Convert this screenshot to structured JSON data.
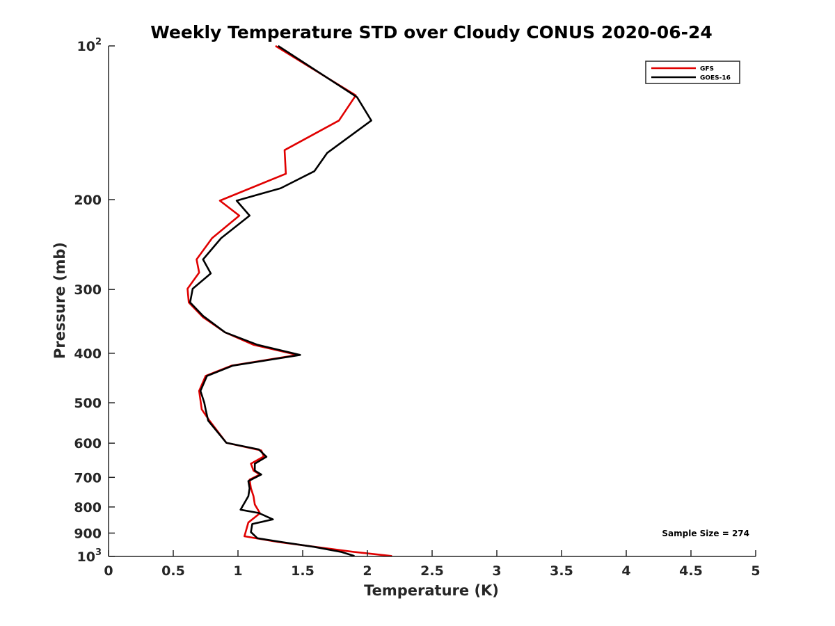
{
  "chart_data": {
    "type": "line",
    "title": "Weekly Temperature STD over Cloudy CONUS 2020-06-24",
    "xlabel": "Temperature (K)",
    "ylabel": "Pressure (mb)",
    "xlim": [
      0,
      5
    ],
    "ylim": [
      100,
      1000
    ],
    "y_scale": "log",
    "y_reversed": true,
    "grid": false,
    "legend_position": "top-right",
    "x_ticks": [
      "0",
      "0.5",
      "1",
      "1.5",
      "2",
      "2.5",
      "3",
      "3.5",
      "4",
      "4.5",
      "5"
    ],
    "y_ticks": [
      {
        "value": 100,
        "base": "10",
        "exp": "2"
      },
      {
        "value": 200,
        "label": "200"
      },
      {
        "value": 300,
        "label": "300"
      },
      {
        "value": 400,
        "label": "400"
      },
      {
        "value": 500,
        "label": "500"
      },
      {
        "value": 600,
        "label": "600"
      },
      {
        "value": 700,
        "label": "700"
      },
      {
        "value": 800,
        "label": "800"
      },
      {
        "value": 900,
        "label": "900"
      },
      {
        "value": 1000,
        "base": "10",
        "exp": "3"
      }
    ],
    "annotation": "Sample Size = 274",
    "series": [
      {
        "name": "GFS",
        "color": "#e00000",
        "points": [
          [
            1.29,
            100
          ],
          [
            1.91,
            125
          ],
          [
            1.78,
            140
          ],
          [
            1.36,
            160
          ],
          [
            1.37,
            178
          ],
          [
            0.86,
            201
          ],
          [
            1.01,
            215
          ],
          [
            0.8,
            238
          ],
          [
            0.68,
            262
          ],
          [
            0.7,
            278
          ],
          [
            0.61,
            299
          ],
          [
            0.62,
            318
          ],
          [
            0.73,
            340
          ],
          [
            0.9,
            364
          ],
          [
            1.12,
            385
          ],
          [
            1.46,
            403
          ],
          [
            0.95,
            423
          ],
          [
            0.75,
            443
          ],
          [
            0.7,
            474
          ],
          [
            0.72,
            515
          ],
          [
            0.78,
            542
          ],
          [
            0.91,
            599
          ],
          [
            1.18,
            620
          ],
          [
            1.2,
            637
          ],
          [
            1.1,
            658
          ],
          [
            1.12,
            679
          ],
          [
            1.17,
            691
          ],
          [
            1.09,
            707
          ],
          [
            1.1,
            735
          ],
          [
            1.12,
            762
          ],
          [
            1.13,
            791
          ],
          [
            1.17,
            823
          ],
          [
            1.08,
            858
          ],
          [
            1.05,
            913
          ],
          [
            1.3,
            936
          ],
          [
            1.6,
            958
          ],
          [
            1.9,
            980
          ],
          [
            2.19,
            998
          ]
        ]
      },
      {
        "name": "GOES-16",
        "color": "#000000",
        "points": [
          [
            1.31,
            100
          ],
          [
            1.92,
            126
          ],
          [
            2.03,
            140
          ],
          [
            1.69,
            162
          ],
          [
            1.59,
            176
          ],
          [
            1.33,
            190
          ],
          [
            0.99,
            201
          ],
          [
            1.09,
            215
          ],
          [
            0.87,
            238
          ],
          [
            0.73,
            262
          ],
          [
            0.79,
            279
          ],
          [
            0.65,
            299
          ],
          [
            0.63,
            318
          ],
          [
            0.73,
            338
          ],
          [
            0.9,
            364
          ],
          [
            1.15,
            385
          ],
          [
            1.48,
            403
          ],
          [
            0.96,
            423
          ],
          [
            0.76,
            443
          ],
          [
            0.71,
            474
          ],
          [
            0.74,
            500
          ],
          [
            0.75,
            515
          ],
          [
            0.77,
            542
          ],
          [
            0.91,
            599
          ],
          [
            1.16,
            617
          ],
          [
            1.22,
            638
          ],
          [
            1.13,
            658
          ],
          [
            1.13,
            679
          ],
          [
            1.18,
            691
          ],
          [
            1.08,
            712
          ],
          [
            1.09,
            735
          ],
          [
            1.08,
            762
          ],
          [
            1.02,
            810
          ],
          [
            1.16,
            822
          ],
          [
            1.27,
            846
          ],
          [
            1.11,
            864
          ],
          [
            1.1,
            896
          ],
          [
            1.15,
            921
          ],
          [
            1.35,
            938
          ],
          [
            1.59,
            958
          ],
          [
            1.8,
            980
          ],
          [
            1.9,
            998
          ]
        ]
      }
    ]
  }
}
